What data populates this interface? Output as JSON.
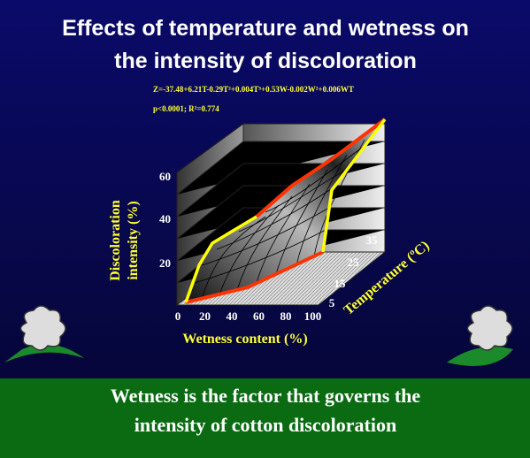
{
  "slide": {
    "title": [
      "Effects of temperature and wetness on",
      "the intensity of discoloration"
    ],
    "equation": "Z=-37.48+6.21T-0.29T²+0.004T³+0.53W-0.002W²+0.006WT",
    "stats": "p<0.0001;  R²=0.774",
    "z_axis_label": [
      "Discoloration",
      "intensity (%)"
    ],
    "z_ticks": [
      "60",
      "40",
      "20"
    ],
    "x_axis_label": "Wetness content (%)",
    "x_ticks": [
      "0",
      "20",
      "40",
      "60",
      "80",
      "100"
    ],
    "t_axis_label": "Temperature (ºC)",
    "t_ticks": [
      "5",
      "15",
      "25",
      "35"
    ],
    "footer": [
      "Wetness is the factor that governs the",
      "intensity of cotton discoloration"
    ]
  }
}
